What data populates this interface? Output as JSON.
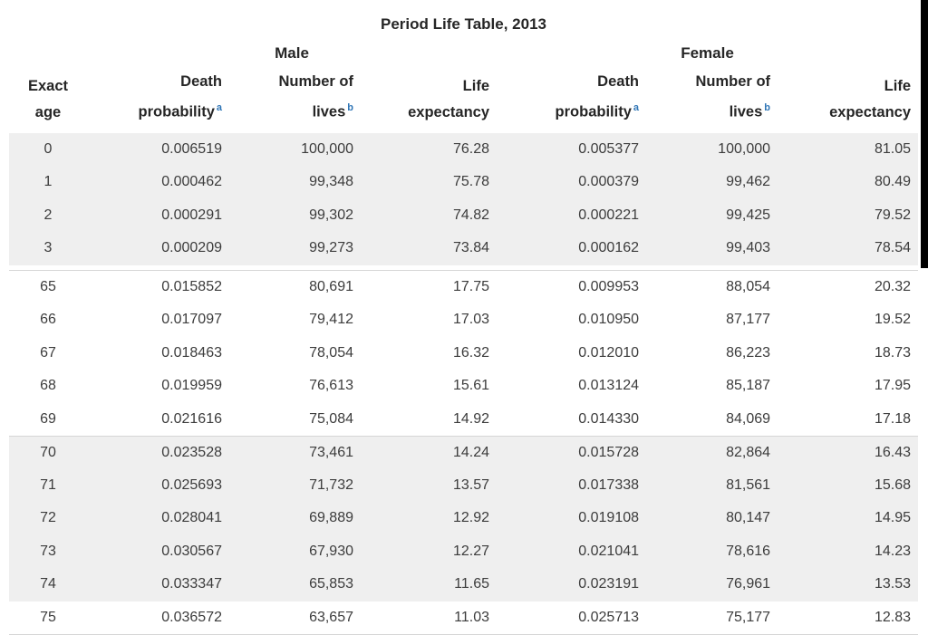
{
  "title": "Period Life Table, 2013",
  "groups": {
    "male": "Male",
    "female": "Female"
  },
  "header": {
    "columns": [
      {
        "line1": "Exact",
        "line2": "age"
      },
      {
        "line1": "Death",
        "line2": "probability",
        "sup": "a"
      },
      {
        "line1": "Number of",
        "line2": "lives",
        "sup": "b"
      },
      {
        "line1": "Life",
        "line2": "expectancy"
      },
      {
        "line1": "Death",
        "line2": "probability",
        "sup": "a"
      },
      {
        "line1": "Number of",
        "line2": "lives",
        "sup": "b"
      },
      {
        "line1": "Life",
        "line2": "expectancy"
      }
    ]
  },
  "colors": {
    "text": "#3c3c3c",
    "header_text": "#262626",
    "band_gray": "#efefef",
    "separator_line": "#d6d6d6",
    "footnote_blue": "#2e75b6",
    "edge_artifact": "#000000"
  },
  "row_groups": [
    {
      "start": 0,
      "count": 4,
      "shaded": true,
      "gap_after": true
    },
    {
      "start": 4,
      "count": 5,
      "shaded": false
    },
    {
      "start": 9,
      "count": 5,
      "shaded": true,
      "line_top": true
    },
    {
      "start": 14,
      "count": 1,
      "shaded": false,
      "line_bottom": true
    }
  ],
  "chart_data": {
    "type": "table",
    "title": "Period Life Table, 2013",
    "column_groups": [
      "",
      "Male",
      "Male",
      "Male",
      "Female",
      "Female",
      "Female"
    ],
    "columns": [
      "Exact age",
      "Death probability",
      "Number of lives",
      "Life expectancy",
      "Death probability",
      "Number of lives",
      "Life expectancy"
    ],
    "footnote_markers": {
      "death_probability": "a",
      "number_of_lives": "b"
    },
    "rows": [
      [
        "0",
        "0.006519",
        "100,000",
        "76.28",
        "0.005377",
        "100,000",
        "81.05"
      ],
      [
        "1",
        "0.000462",
        "99,348",
        "75.78",
        "0.000379",
        "99,462",
        "80.49"
      ],
      [
        "2",
        "0.000291",
        "99,302",
        "74.82",
        "0.000221",
        "99,425",
        "79.52"
      ],
      [
        "3",
        "0.000209",
        "99,273",
        "73.84",
        "0.000162",
        "99,403",
        "78.54"
      ],
      [
        "65",
        "0.015852",
        "80,691",
        "17.75",
        "0.009953",
        "88,054",
        "20.32"
      ],
      [
        "66",
        "0.017097",
        "79,412",
        "17.03",
        "0.010950",
        "87,177",
        "19.52"
      ],
      [
        "67",
        "0.018463",
        "78,054",
        "16.32",
        "0.012010",
        "86,223",
        "18.73"
      ],
      [
        "68",
        "0.019959",
        "76,613",
        "15.61",
        "0.013124",
        "85,187",
        "17.95"
      ],
      [
        "69",
        "0.021616",
        "75,084",
        "14.92",
        "0.014330",
        "84,069",
        "17.18"
      ],
      [
        "70",
        "0.023528",
        "73,461",
        "14.24",
        "0.015728",
        "82,864",
        "16.43"
      ],
      [
        "71",
        "0.025693",
        "71,732",
        "13.57",
        "0.017338",
        "81,561",
        "15.68"
      ],
      [
        "72",
        "0.028041",
        "69,889",
        "12.92",
        "0.019108",
        "80,147",
        "14.95"
      ],
      [
        "73",
        "0.030567",
        "67,930",
        "12.27",
        "0.021041",
        "78,616",
        "14.23"
      ],
      [
        "74",
        "0.033347",
        "65,853",
        "11.65",
        "0.023191",
        "76,961",
        "13.53"
      ],
      [
        "75",
        "0.036572",
        "63,657",
        "11.03",
        "0.025713",
        "75,177",
        "12.83"
      ]
    ]
  }
}
